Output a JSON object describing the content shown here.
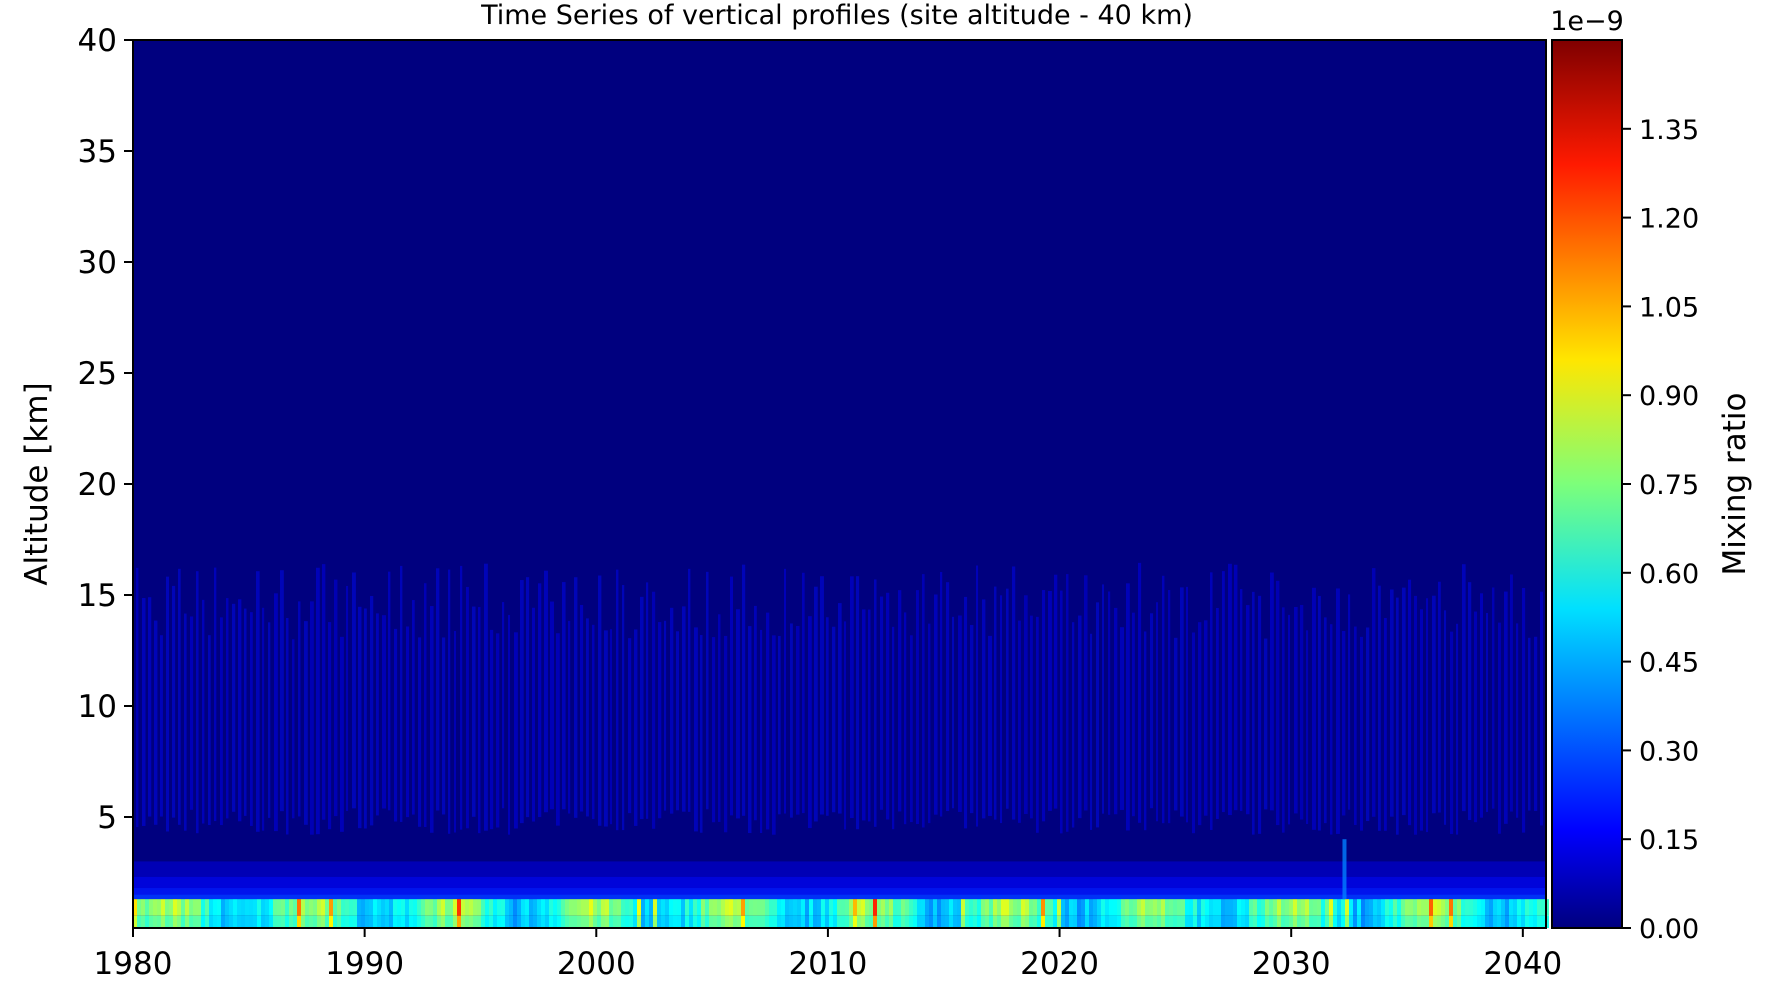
{
  "chart_data": {
    "type": "heatmap",
    "title": "Time Series of vertical profiles (site altitude - 40 km)",
    "xlabel": "",
    "ylabel": "Altitude [km]",
    "xlim": [
      1980,
      2041
    ],
    "ylim": [
      0,
      40
    ],
    "x_ticks": [
      "1980",
      "1990",
      "2000",
      "2010",
      "2020",
      "2030",
      "2040"
    ],
    "y_ticks": [
      "5",
      "10",
      "15",
      "20",
      "25",
      "30",
      "35",
      "40"
    ],
    "colorbar": {
      "label": "Mixing ratio",
      "exponent_label": "1e−9",
      "range": [
        0.0,
        1.5
      ],
      "ticks": [
        "0.00",
        "0.15",
        "0.30",
        "0.45",
        "0.60",
        "0.75",
        "0.90",
        "1.05",
        "1.20",
        "1.35"
      ],
      "colormap": "jet",
      "levels": 50
    },
    "features": [
      {
        "description_altitude_km": [
          0,
          1.3
        ],
        "typical_value_1e-9": 0.6,
        "peak_value_1e-9": 1.3
      },
      {
        "description_altitude_km": [
          1.3,
          3
        ],
        "typical_value_1e-9": 0.1
      },
      {
        "description_altitude_km": [
          4.5,
          16
        ],
        "typical_value_1e-9": 0.04
      },
      {
        "description_altitude_km": [
          16,
          40
        ],
        "typical_value_1e-9": 0.0
      }
    ],
    "grid": false
  },
  "colors": {
    "background_field": "#00007f",
    "low_band": "#00e0ff",
    "peak": "#ff3000"
  }
}
